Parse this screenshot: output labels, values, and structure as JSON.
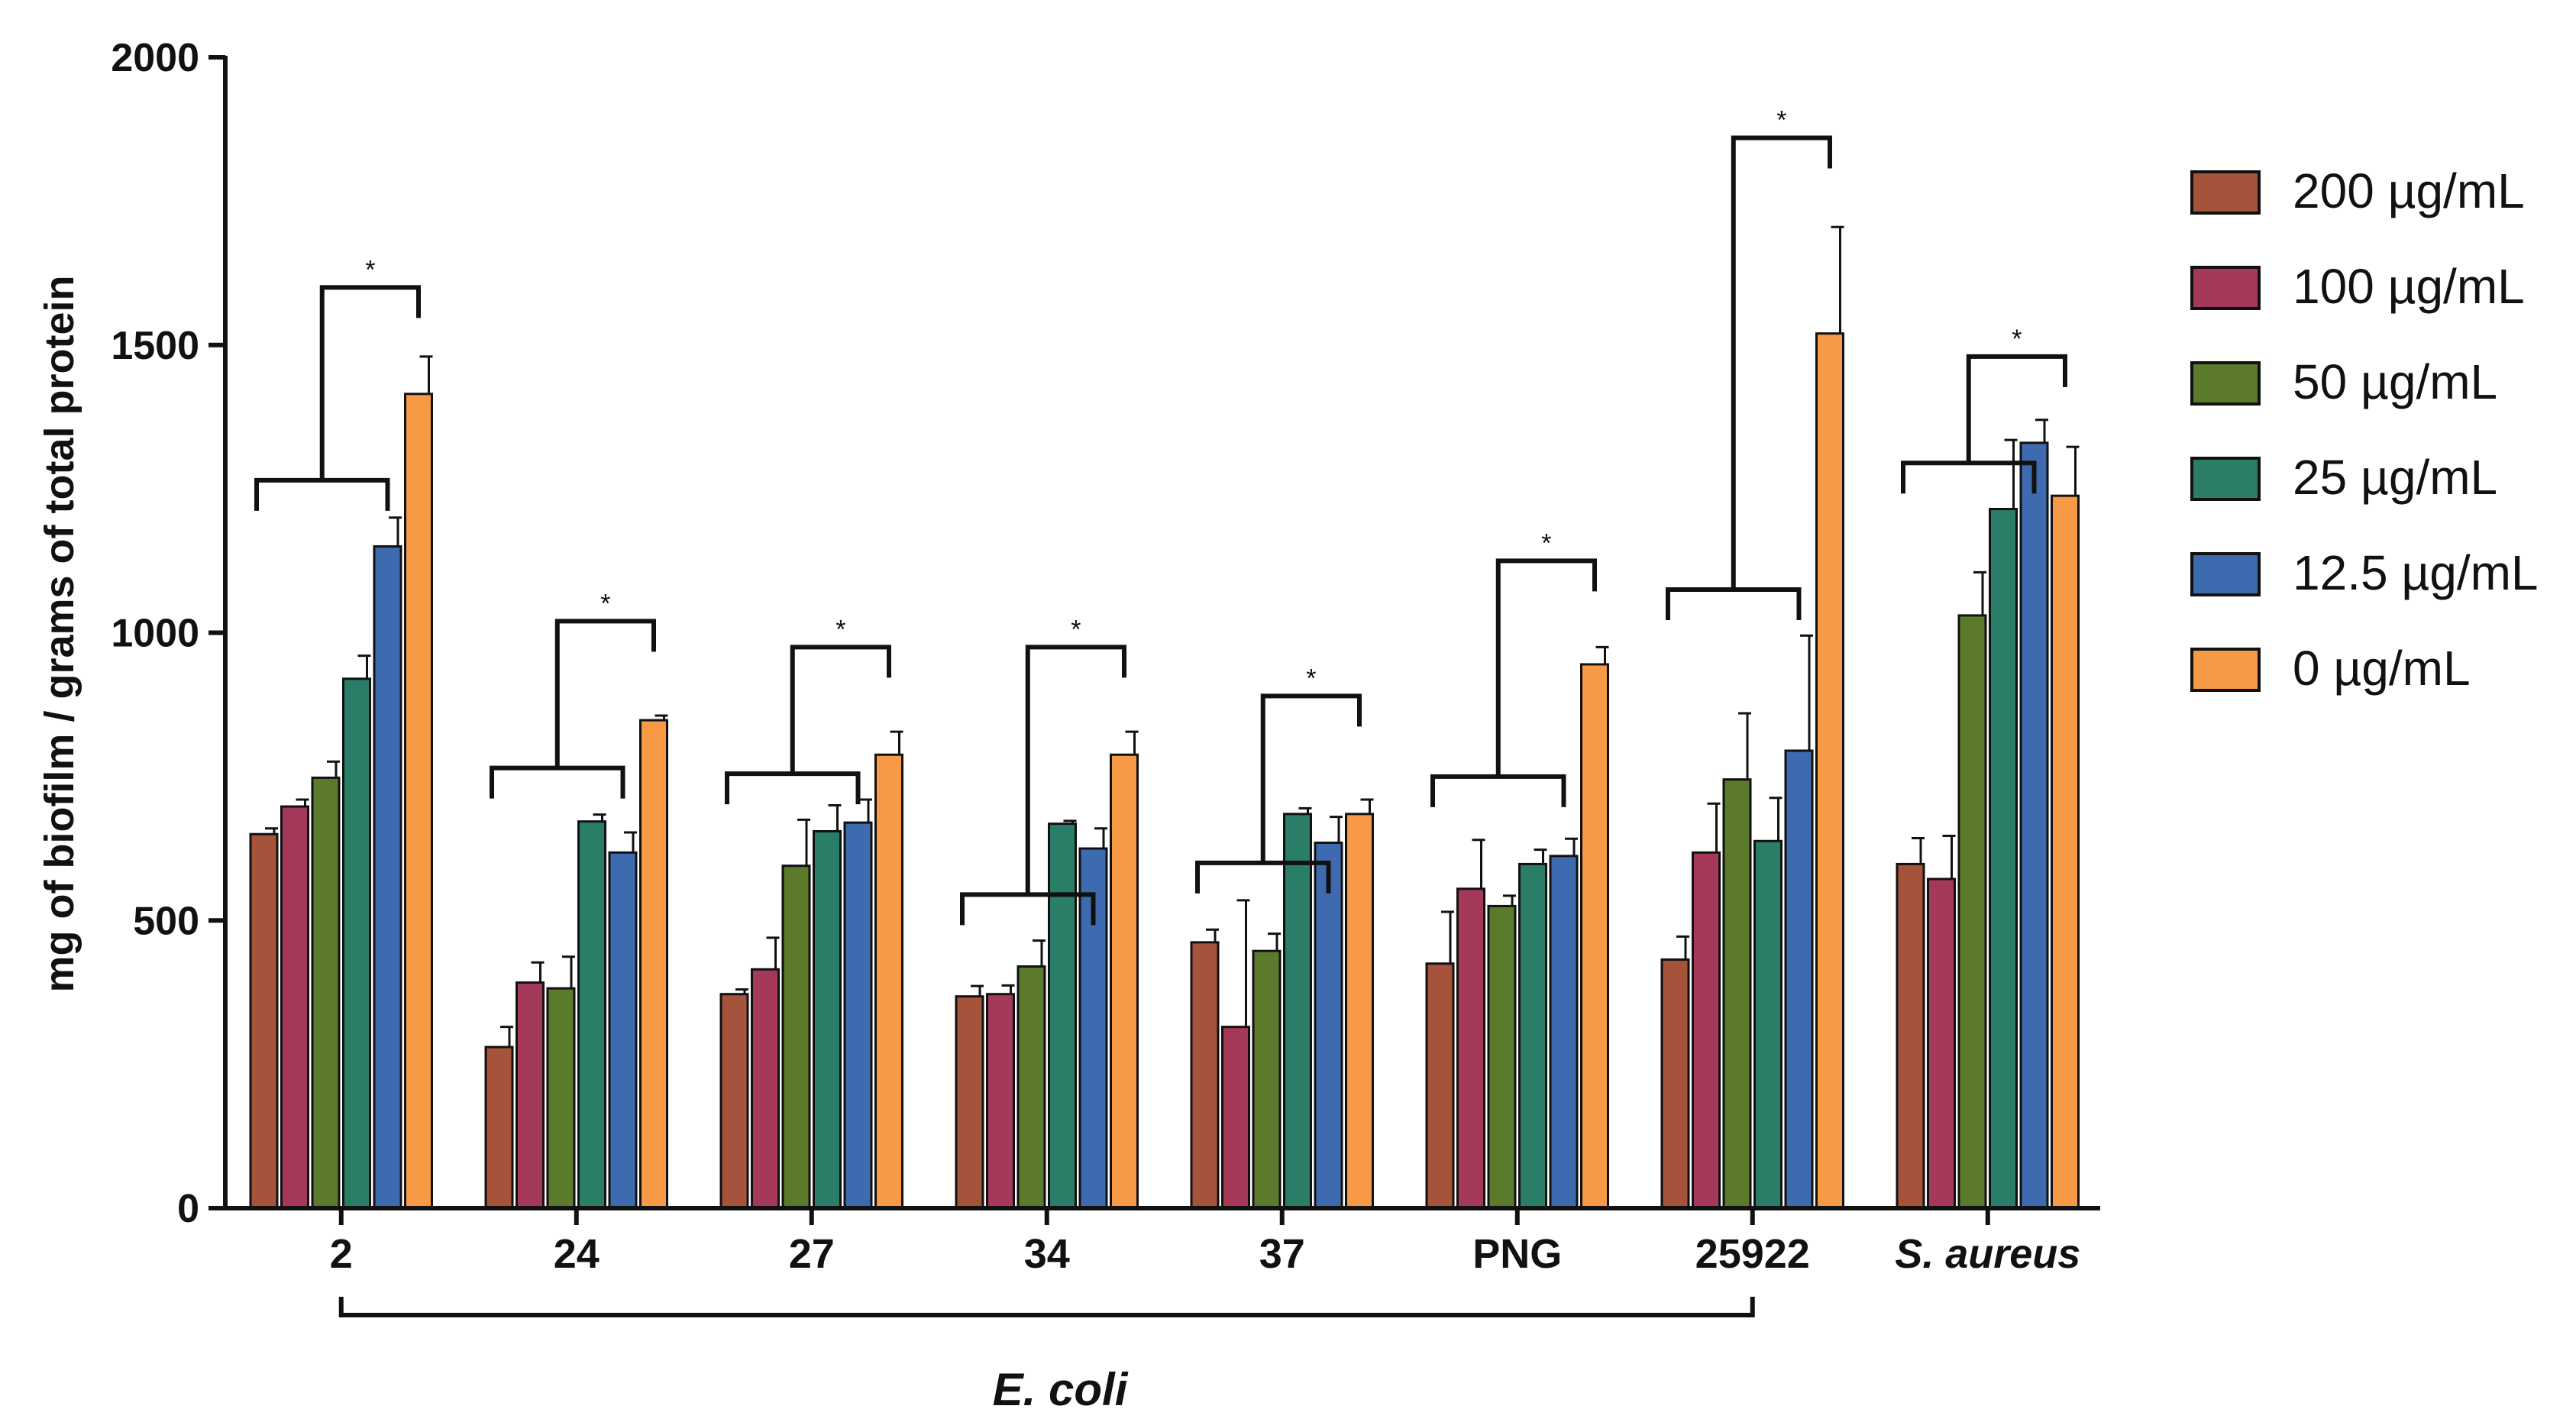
{
  "chart_data": {
    "type": "bar",
    "ylabel": "mg of biofilm / grams of total protein",
    "xlabel": "",
    "ylim": [
      0,
      2000
    ],
    "yticks": [
      0,
      500,
      1000,
      1500,
      2000
    ],
    "categories": [
      "2",
      "24",
      "27",
      "34",
      "37",
      "PNG",
      "25922",
      "S. aureus"
    ],
    "category_group": {
      "label": "E. coli",
      "members": [
        "2",
        "24",
        "27",
        "34",
        "37",
        "PNG",
        "25922"
      ]
    },
    "legend_position": "right",
    "series": [
      {
        "name": "200 µg/mL",
        "color": "#A5533A",
        "values": [
          650,
          280,
          372,
          368,
          462,
          425,
          432,
          598
        ],
        "errors": [
          10,
          35,
          8,
          18,
          22,
          90,
          40,
          45
        ]
      },
      {
        "name": "100 µg/mL",
        "color": "#A5395A",
        "values": [
          698,
          392,
          415,
          372,
          315,
          555,
          618,
          572
        ],
        "errors": [
          12,
          35,
          55,
          15,
          220,
          85,
          85,
          75
        ]
      },
      {
        "name": "50 µg/mL",
        "color": "#5C7A2C",
        "values": [
          748,
          382,
          595,
          420,
          447,
          525,
          745,
          1030
        ],
        "errors": [
          28,
          55,
          80,
          45,
          30,
          18,
          115,
          75
        ]
      },
      {
        "name": "25 µg/mL",
        "color": "#2A7D66",
        "values": [
          920,
          672,
          655,
          668,
          685,
          598,
          638,
          1215
        ],
        "errors": [
          40,
          12,
          45,
          5,
          10,
          25,
          75,
          120
        ]
      },
      {
        "name": "12.5 µg/mL",
        "color": "#3E6BAF",
        "values": [
          1150,
          618,
          670,
          625,
          635,
          612,
          795,
          1330
        ],
        "errors": [
          50,
          35,
          40,
          35,
          45,
          30,
          200,
          40
        ]
      },
      {
        "name": "0 µg/mL",
        "color": "#F79A46",
        "values": [
          1415,
          848,
          788,
          788,
          685,
          945,
          1520,
          1238
        ],
        "errors": [
          65,
          8,
          40,
          40,
          25,
          30,
          185,
          85
        ]
      }
    ],
    "significance": [
      {
        "category": "2",
        "left_low": 1265,
        "left_high": 1600,
        "label": "*"
      },
      {
        "category": "24",
        "left_low": 765,
        "left_high": 1020,
        "label": "*"
      },
      {
        "category": "27",
        "left_low": 755,
        "left_high": 975,
        "label": "*"
      },
      {
        "category": "34",
        "left_low": 545,
        "left_high": 975,
        "label": "*"
      },
      {
        "category": "37",
        "left_low": 600,
        "left_high": 890,
        "label": "*"
      },
      {
        "category": "PNG",
        "left_low": 750,
        "left_high": 1125,
        "label": "*"
      },
      {
        "category": "25922",
        "left_low": 1075,
        "left_high": 1860,
        "label": "*"
      },
      {
        "category": "S. aureus",
        "left_low": 1295,
        "left_high": 1480,
        "label": "*"
      }
    ]
  }
}
